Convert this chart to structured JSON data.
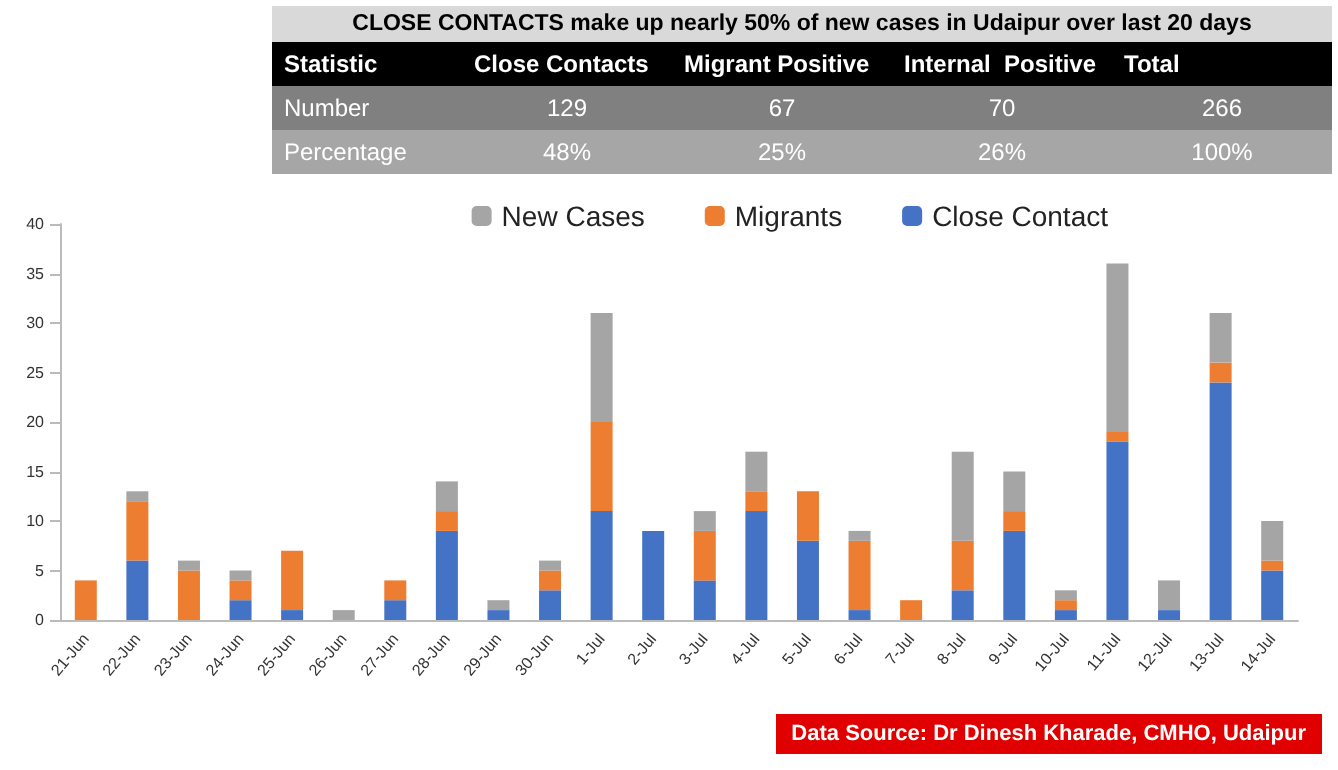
{
  "chart_data": [
    {
      "type": "other",
      "title": "CLOSE CONTACTS make up nearly 50% of new cases in Udaipur over last 20 days",
      "annotations": [
        "Statistic",
        "Close Contacts",
        "Migrant Positive",
        "Internal  Positive",
        "Total",
        "Number",
        "129",
        "67",
        "70",
        "266",
        "Percentage",
        "48%",
        "25%",
        "26%",
        "100%"
      ]
    },
    {
      "type": "bar",
      "stacked": true,
      "legend": "top right",
      "grid": false,
      "categories": [
        "21-Jun",
        "22-Jun",
        "23-Jun",
        "24-Jun",
        "25-Jun",
        "26-Jun",
        "27-Jun",
        "28-Jun",
        "29-Jun",
        "30-Jun",
        "1-Jul",
        "2-Jul",
        "3-Jul",
        "4-Jul",
        "5-Jul",
        "6-Jul",
        "7-Jul",
        "8-Jul",
        "9-Jul",
        "10-Jul",
        "11-Jul",
        "12-Jul",
        "13-Jul",
        "14-Jul"
      ],
      "series": [
        {
          "name": "Close Contact",
          "color": "#4472c4",
          "values": [
            0,
            6,
            0,
            2,
            1,
            0,
            2,
            9,
            1,
            3,
            11,
            9,
            4,
            11,
            8,
            1,
            0,
            3,
            9,
            1,
            18,
            1,
            24,
            5
          ]
        },
        {
          "name": "Migrants",
          "color": "#ed7d31",
          "values": [
            4,
            6,
            5,
            2,
            6,
            0,
            2,
            2,
            0,
            2,
            9,
            0,
            5,
            2,
            5,
            7,
            2,
            5,
            2,
            1,
            1,
            0,
            2,
            1
          ]
        },
        {
          "name": "New Cases",
          "color": "#a5a5a5",
          "values": [
            0,
            1,
            1,
            1,
            0,
            1,
            0,
            3,
            1,
            1,
            11,
            0,
            2,
            4,
            0,
            1,
            0,
            9,
            4,
            1,
            17,
            3,
            5,
            4
          ]
        }
      ],
      "ylim": [
        0,
        40
      ],
      "yticks": [
        0,
        5,
        10,
        15,
        20,
        25,
        30,
        35,
        40
      ],
      "annotations": [
        "Data Source: Dr Dinesh Kharade, CMHO, Udaipur"
      ]
    }
  ]
}
